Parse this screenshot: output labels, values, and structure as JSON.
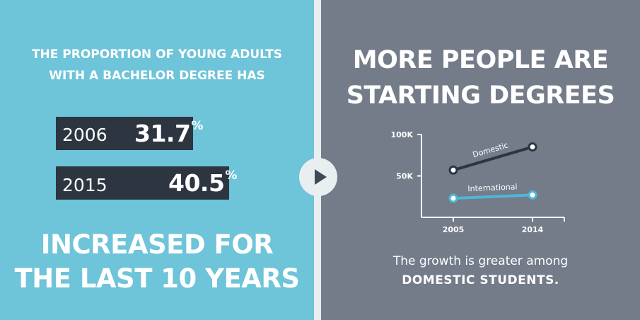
{
  "left": {
    "intro_line1": "THE PROPORTION OF YOUNG ADULTS",
    "intro_line2": "WITH A BACHELOR DEGREE HAS",
    "stats": [
      {
        "year": "2006",
        "value": "31.7",
        "unit": "%"
      },
      {
        "year": "2015",
        "value": "40.5",
        "unit": "%"
      }
    ],
    "outro_line1": "INCREASED FOR",
    "outro_line2": "THE LAST 10 YEARS"
  },
  "right": {
    "title_line1": "MORE PEOPLE ARE",
    "title_line2": "STARTING DEGREES",
    "note_line1": "The growth is greater among",
    "note_line2": "DOMESTIC STUDENTS."
  },
  "colors": {
    "left_bg": "#6ec4d8",
    "right_bg": "#747b89",
    "stat_box": "#2c3540",
    "domestic": "#2c3540",
    "international": "#4fb6d8"
  },
  "icons": {
    "play": "play-icon"
  },
  "chart_data": {
    "type": "line",
    "categories": [
      "2005",
      "2014"
    ],
    "series": [
      {
        "name": "Domestic",
        "values": [
          57000,
          85000
        ],
        "color": "#2c3540"
      },
      {
        "name": "International",
        "values": [
          23000,
          27000
        ],
        "color": "#4fb6d8"
      }
    ],
    "ytick_labels": [
      "100K",
      "50K"
    ],
    "ytick_values": [
      100000,
      50000
    ],
    "ylim": [
      0,
      100000
    ],
    "xlabel": "",
    "ylabel": "",
    "grid": false,
    "legend": "inline labels"
  }
}
